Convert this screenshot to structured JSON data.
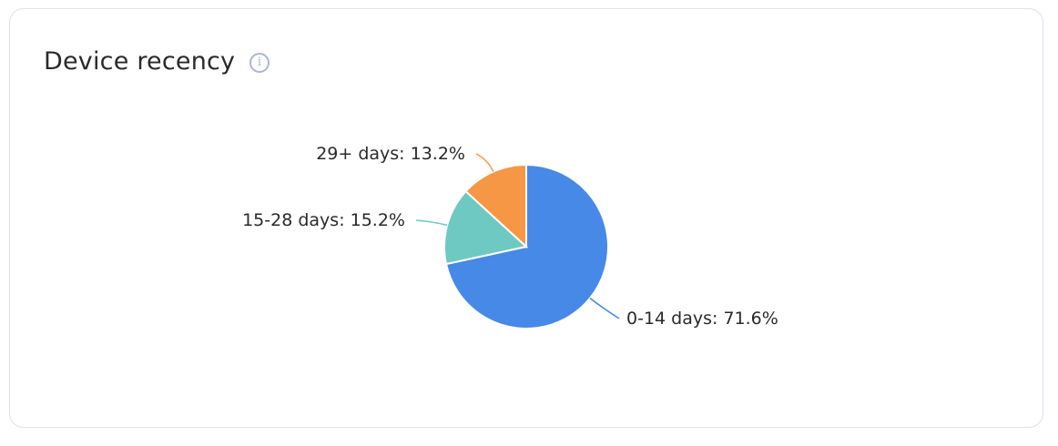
{
  "card": {
    "title": "Device recency",
    "info_icon": "info-icon"
  },
  "chart_data": {
    "type": "pie",
    "title": "Device recency",
    "slices": [
      {
        "label": "0-14 days",
        "value": 71.6,
        "color": "#4789e7",
        "text": "0-14 days: 71.6%"
      },
      {
        "label": "15-28 days",
        "value": 15.2,
        "color": "#6ec9c3",
        "text": "15-28 days: 15.2%"
      },
      {
        "label": "29+ days",
        "value": 13.2,
        "color": "#f59744",
        "text": "29+ days: 13.2%"
      }
    ]
  }
}
